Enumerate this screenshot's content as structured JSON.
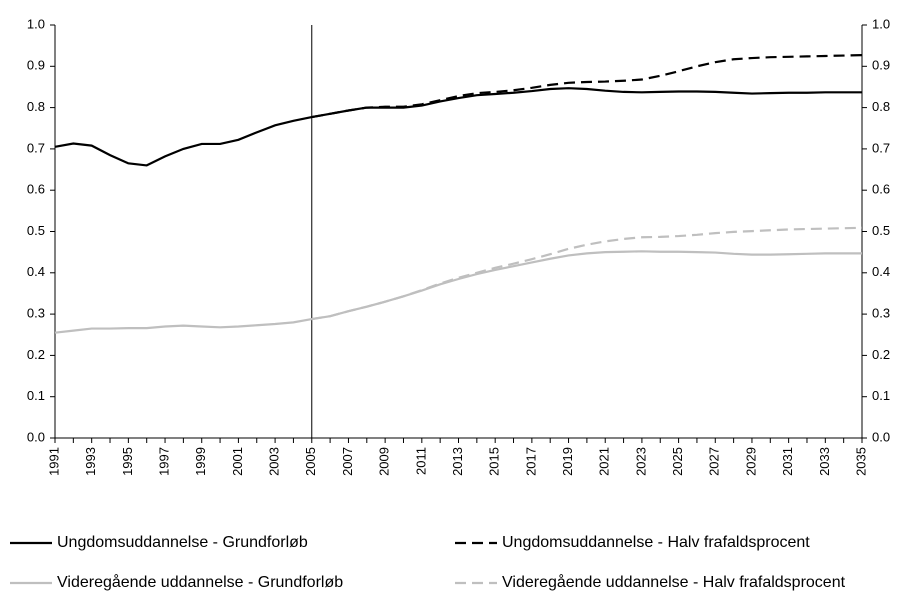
{
  "chart_data": {
    "type": "line",
    "x": [
      1991,
      1992,
      1993,
      1994,
      1995,
      1996,
      1997,
      1998,
      1999,
      2000,
      2001,
      2002,
      2003,
      2004,
      2005,
      2006,
      2007,
      2008,
      2009,
      2010,
      2011,
      2012,
      2013,
      2014,
      2015,
      2016,
      2017,
      2018,
      2019,
      2020,
      2021,
      2022,
      2023,
      2024,
      2025,
      2026,
      2027,
      2028,
      2029,
      2030,
      2031,
      2032,
      2033,
      2034,
      2035
    ],
    "xlim": [
      1991,
      2035
    ],
    "xticks": [
      1991,
      1993,
      1995,
      1997,
      1999,
      2001,
      2003,
      2005,
      2007,
      2009,
      2011,
      2013,
      2015,
      2017,
      2019,
      2021,
      2023,
      2025,
      2027,
      2029,
      2031,
      2033,
      2035
    ],
    "ylim": [
      0,
      1
    ],
    "yticks": [
      {
        "value": 0,
        "label": "0.0"
      },
      0.1,
      0.2,
      0.3,
      0.4,
      0.5,
      0.6,
      0.7,
      0.8,
      0.9,
      {
        "value": 1,
        "label": "1.0"
      }
    ],
    "y2lim": [
      0,
      1
    ],
    "y2ticks": [
      {
        "value": 0,
        "label": "0.0"
      },
      0.1,
      0.2,
      0.3,
      0.4,
      0.5,
      0.6,
      0.7,
      0.8,
      0.9,
      {
        "value": 1,
        "label": "1.0"
      }
    ],
    "vertical_line_x": 2005,
    "series": [
      {
        "name": "Ungdomsuddannelse - Grundforløb",
        "color": "#000000",
        "dashed": false,
        "values": [
          0.705,
          0.713,
          0.708,
          0.685,
          0.665,
          0.66,
          0.682,
          0.7,
          0.712,
          0.712,
          0.722,
          0.74,
          0.757,
          0.768,
          0.777,
          0.785,
          0.793,
          0.8,
          0.8,
          0.8,
          0.805,
          0.815,
          0.823,
          0.83,
          0.833,
          0.836,
          0.84,
          0.845,
          0.847,
          0.845,
          0.841,
          0.838,
          0.837,
          0.838,
          0.839,
          0.839,
          0.838,
          0.836,
          0.834,
          0.835,
          0.836,
          0.836,
          0.837,
          0.837,
          0.837
        ]
      },
      {
        "name": "Ungdomsuddannelse - Halv frafaldsprocent",
        "color": "#000000",
        "dashed": true,
        "values": [
          null,
          null,
          null,
          null,
          null,
          null,
          null,
          null,
          null,
          null,
          null,
          null,
          null,
          null,
          0.777,
          0.785,
          0.793,
          0.8,
          0.802,
          0.802,
          0.808,
          0.818,
          0.828,
          0.835,
          0.838,
          0.842,
          0.848,
          0.855,
          0.86,
          0.862,
          0.863,
          0.865,
          0.868,
          0.877,
          0.888,
          0.9,
          0.91,
          0.917,
          0.92,
          0.922,
          0.923,
          0.924,
          0.925,
          0.926,
          0.927
        ]
      },
      {
        "name": "Videregående uddannelse - Grundforløb",
        "color": "#bfbfbf",
        "dashed": false,
        "values": [
          0.255,
          0.26,
          0.265,
          0.265,
          0.266,
          0.266,
          0.27,
          0.272,
          0.27,
          0.268,
          0.27,
          0.273,
          0.276,
          0.28,
          0.288,
          0.295,
          0.307,
          0.318,
          0.33,
          0.343,
          0.357,
          0.372,
          0.385,
          0.397,
          0.407,
          0.416,
          0.425,
          0.434,
          0.442,
          0.447,
          0.45,
          0.451,
          0.452,
          0.451,
          0.451,
          0.45,
          0.449,
          0.446,
          0.444,
          0.444,
          0.445,
          0.446,
          0.447,
          0.447,
          0.447
        ]
      },
      {
        "name": "Videregående uddannelse - Halv frafaldsprocent",
        "color": "#bfbfbf",
        "dashed": true,
        "values": [
          null,
          null,
          null,
          null,
          null,
          null,
          null,
          null,
          null,
          null,
          null,
          null,
          null,
          null,
          0.288,
          0.295,
          0.307,
          0.318,
          0.33,
          0.343,
          0.358,
          0.374,
          0.388,
          0.4,
          0.412,
          0.422,
          0.433,
          0.445,
          0.458,
          0.468,
          0.476,
          0.482,
          0.486,
          0.487,
          0.489,
          0.492,
          0.496,
          0.499,
          0.501,
          0.503,
          0.505,
          0.506,
          0.507,
          0.508,
          0.509
        ]
      }
    ]
  }
}
